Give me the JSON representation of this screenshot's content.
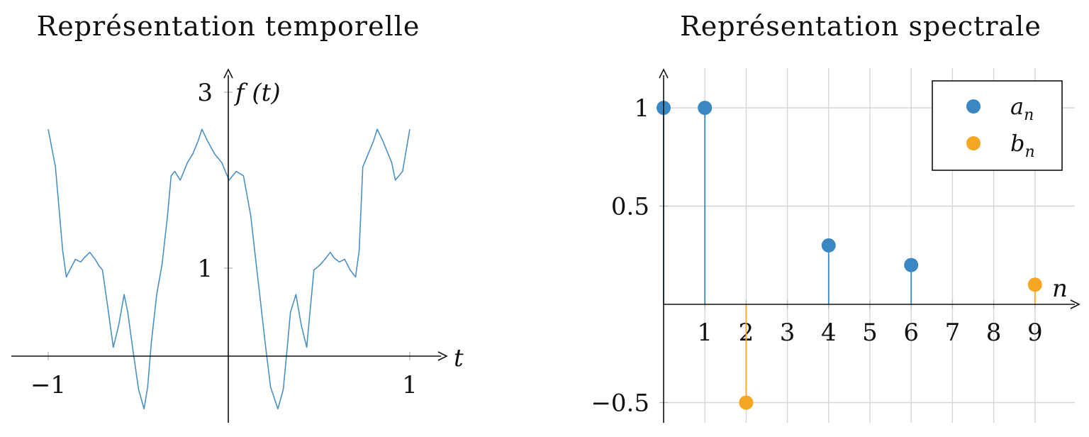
{
  "chart_data": [
    {
      "type": "line",
      "title": "Représentation temporelle",
      "xlabel": "t",
      "ylabel": "f (t)",
      "xlim": [
        -1,
        1
      ],
      "ylim": [
        -0.65,
        3
      ],
      "xticks": [
        -1,
        1
      ],
      "xtick_labels": [
        "−1",
        "1"
      ],
      "yticks": [
        1,
        3
      ],
      "ytick_labels": [
        "1",
        "3"
      ],
      "grid": false,
      "series": [
        {
          "color": "#4a90c4",
          "x": [
            -1,
            -0.96,
            -0.92,
            -0.9,
            -0.88,
            -0.85,
            -0.82,
            -0.8,
            -0.77,
            -0.74,
            -0.72,
            -0.7,
            -0.67,
            -0.64,
            -0.61,
            -0.58,
            -0.56,
            -0.53,
            -0.5,
            -0.47,
            -0.45,
            -0.43,
            -0.4,
            -0.37,
            -0.34,
            -0.32,
            -0.3,
            -0.27,
            -0.23,
            -0.2,
            -0.17,
            -0.15,
            -0.12,
            -0.08,
            -0.04,
            0,
            0.04,
            0.08,
            0.12,
            0.15,
            0.17,
            0.2,
            0.23,
            0.27,
            0.3,
            0.32,
            0.34,
            0.37,
            0.4,
            0.43,
            0.45,
            0.47,
            0.5,
            0.53,
            0.56,
            0.58,
            0.61,
            0.64,
            0.67,
            0.7,
            0.72,
            0.74,
            0.77,
            0.8,
            0.82,
            0.85,
            0.88,
            0.9,
            0.92,
            0.96,
            1
          ],
          "y": [
            2.58,
            2.15,
            1.2,
            0.9,
            0.98,
            1.1,
            1.07,
            1.12,
            1.18,
            1.1,
            1.03,
            0.98,
            0.55,
            0.1,
            0.35,
            0.7,
            0.5,
            0.05,
            -0.38,
            -0.6,
            -0.35,
            0.15,
            0.7,
            1.05,
            1.6,
            2.05,
            2.1,
            2.0,
            2.2,
            2.3,
            2.45,
            2.58,
            2.45,
            2.3,
            2.2,
            2.0,
            2.1,
            2.05,
            1.6,
            1.05,
            0.7,
            0.15,
            -0.35,
            -0.6,
            -0.38,
            0.05,
            0.5,
            0.7,
            0.35,
            0.1,
            0.55,
            0.98,
            1.03,
            1.1,
            1.18,
            1.12,
            1.07,
            1.1,
            0.98,
            0.9,
            1.2,
            2.15,
            2.3,
            2.45,
            2.58,
            2.45,
            2.3,
            2.2,
            2.0,
            2.1,
            2.58
          ]
        }
      ]
    },
    {
      "type": "scatter",
      "subtype": "stem",
      "title": "Représentation spectrale",
      "xlabel": "n",
      "ylabel": "",
      "xlim": [
        0,
        9.6
      ],
      "ylim": [
        -0.6,
        1.2
      ],
      "xticks": [
        1,
        2,
        3,
        4,
        5,
        6,
        7,
        8,
        9
      ],
      "xtick_labels": [
        "1",
        "2",
        "3",
        "4",
        "5",
        "6",
        "7",
        "8",
        "9"
      ],
      "yticks": [
        -0.5,
        0.5,
        1
      ],
      "ytick_labels": [
        "−0.5",
        "0.5",
        "1"
      ],
      "grid": true,
      "legend": "top-right",
      "series": [
        {
          "name": "a",
          "subscript": "n",
          "color": "#3a87c4",
          "x": [
            0,
            1,
            4,
            6
          ],
          "y": [
            1,
            1,
            0.3,
            0.2
          ]
        },
        {
          "name": "b",
          "subscript": "n",
          "color": "#f5a623",
          "x": [
            2,
            9
          ],
          "y": [
            -0.5,
            0.1
          ]
        }
      ]
    }
  ]
}
